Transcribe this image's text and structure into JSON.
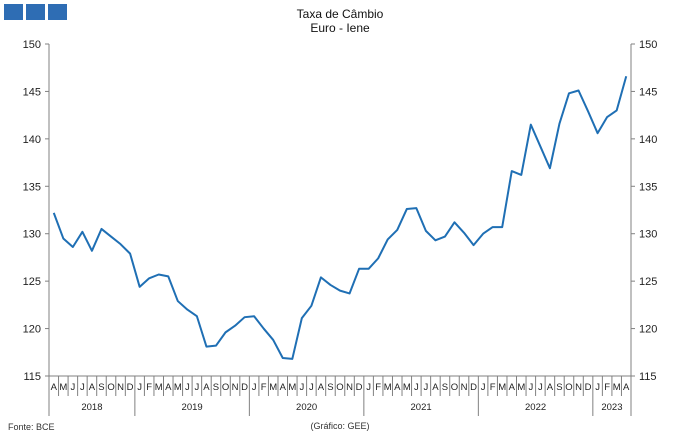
{
  "header": {
    "logo_squares": 3,
    "logo_color": "#2e6db4"
  },
  "chart_data": {
    "type": "line",
    "title": "Taxa de Câmbio",
    "subtitle": "Euro - Iene",
    "ylim": [
      115,
      150
    ],
    "yticks": [
      115,
      120,
      125,
      130,
      135,
      140,
      145,
      150
    ],
    "grid": false,
    "line_color": "#1f6fb4",
    "month_labels": [
      "A",
      "M",
      "J",
      "J",
      "A",
      "S",
      "O",
      "N",
      "D",
      "J",
      "F",
      "M",
      "A",
      "M",
      "J",
      "J",
      "A",
      "S",
      "O",
      "N",
      "D",
      "J",
      "F",
      "M",
      "A",
      "M",
      "J",
      "J",
      "A",
      "S",
      "O",
      "N",
      "D",
      "J",
      "F",
      "M",
      "A",
      "M",
      "J",
      "J",
      "A",
      "S",
      "O",
      "N",
      "D",
      "J",
      "F",
      "M",
      "A",
      "M",
      "J",
      "J",
      "A",
      "S",
      "O",
      "N",
      "D",
      "J",
      "F",
      "M",
      "A"
    ],
    "years": [
      {
        "label": "2018",
        "months": 9
      },
      {
        "label": "2019",
        "months": 12
      },
      {
        "label": "2020",
        "months": 12
      },
      {
        "label": "2021",
        "months": 12
      },
      {
        "label": "2022",
        "months": 12
      },
      {
        "label": "2023",
        "months": 4
      }
    ],
    "series": [
      {
        "values": [
          132.2,
          129.5,
          128.6,
          130.2,
          128.2,
          130.5,
          129.7,
          128.9,
          127.9,
          124.4,
          125.3,
          125.7,
          125.5,
          122.9,
          122.0,
          121.3,
          118.1,
          118.2,
          119.6,
          120.3,
          121.2,
          121.3,
          120.0,
          118.8,
          116.9,
          116.8,
          121.1,
          122.4,
          125.4,
          124.6,
          124.0,
          123.7,
          126.3,
          126.3,
          127.4,
          129.4,
          130.4,
          132.6,
          132.7,
          130.3,
          129.3,
          129.7,
          131.2,
          130.1,
          128.8,
          130.0,
          130.7,
          130.7,
          136.6,
          136.2,
          141.5,
          139.2,
          136.9,
          141.6,
          144.8,
          145.1,
          142.9,
          140.6,
          142.3,
          143.0,
          146.6
        ]
      }
    ]
  },
  "footer": {
    "source": "Fonte: BCE",
    "credit": "(Gráfico: GEE)"
  }
}
